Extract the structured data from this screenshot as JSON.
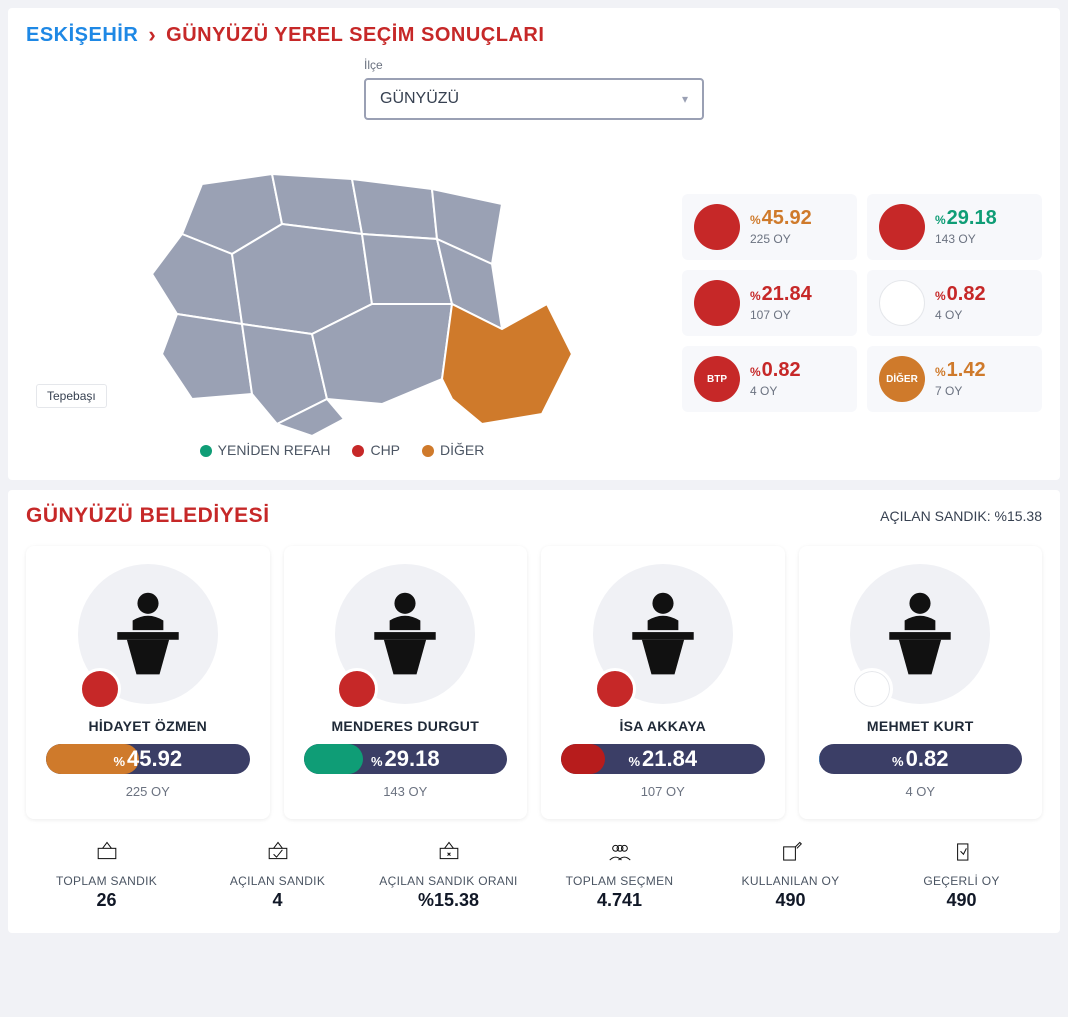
{
  "colors": {
    "province_link": "#1e88e5",
    "title": "#c62828",
    "map_default": "#9aa1b4",
    "map_highlight": "#cf7a2b",
    "bar_track": "#3b3e66"
  },
  "breadcrumb": {
    "province": "ESKİŞEHİR",
    "title": "GÜNYÜZÜ YEREL SEÇİM SONUÇLARI"
  },
  "selector": {
    "label": "İlçe",
    "value": "GÜNYÜZÜ"
  },
  "map": {
    "hover_label": "Tepebaşı"
  },
  "legend": [
    {
      "label": "YENİDEN REFAH",
      "color": "#0f9d76"
    },
    {
      "label": "CHP",
      "color": "#c62828"
    },
    {
      "label": "DİĞER",
      "color": "#cf7a2b"
    }
  ],
  "parties": [
    {
      "pct": "45.92",
      "votes": "225 OY",
      "pct_color": "#cf7a2b",
      "logo_bg": "#c62828",
      "logo_text": ""
    },
    {
      "pct": "29.18",
      "votes": "143 OY",
      "pct_color": "#0f9d76",
      "logo_bg": "#c62828",
      "logo_text": ""
    },
    {
      "pct": "21.84",
      "votes": "107 OY",
      "pct_color": "#c62828",
      "logo_bg": "#c62828",
      "logo_text": ""
    },
    {
      "pct": "0.82",
      "votes": "4 OY",
      "pct_color": "#c62828",
      "logo_bg": "#ffffff",
      "logo_text": "",
      "logo_fg": "#3b6ea5"
    },
    {
      "pct": "0.82",
      "votes": "4 OY",
      "pct_color": "#c62828",
      "logo_bg": "#c62828",
      "logo_text": "BTP"
    },
    {
      "pct": "1.42",
      "votes": "7 OY",
      "pct_color": "#cf7a2b",
      "logo_bg": "#cf7a2b",
      "logo_text": "DİĞER"
    }
  ],
  "municipality": {
    "title": "GÜNYÜZÜ BELEDİYESİ",
    "open_label": "AÇILAN SANDIK: %15.38"
  },
  "candidates": [
    {
      "name": "HİDAYET ÖZMEN",
      "pct": "45.92",
      "votes": "225 OY",
      "fill_color": "#cf7a2b",
      "fill_width": 45.92,
      "badge_bg": "#c62828"
    },
    {
      "name": "MENDERES DURGUT",
      "pct": "29.18",
      "votes": "143 OY",
      "fill_color": "#0f9d76",
      "fill_width": 29.18,
      "badge_bg": "#c62828"
    },
    {
      "name": "İSA AKKAYA",
      "pct": "21.84",
      "votes": "107 OY",
      "fill_color": "#b71c1c",
      "fill_width": 21.84,
      "badge_bg": "#c62828"
    },
    {
      "name": "MEHMET KURT",
      "pct": "0.82",
      "votes": "4 OY",
      "fill_color": "#3b6ea5",
      "fill_width": 0.82,
      "badge_bg": "#ffffff",
      "badge_fg": "#3b6ea5"
    }
  ],
  "stats": [
    {
      "label": "TOPLAM SANDIK",
      "value": "26"
    },
    {
      "label": "AÇILAN SANDIK",
      "value": "4"
    },
    {
      "label": "AÇILAN SANDIK ORANI",
      "value": "%15.38"
    },
    {
      "label": "TOPLAM SEÇMEN",
      "value": "4.741"
    },
    {
      "label": "KULLANILAN OY",
      "value": "490"
    },
    {
      "label": "GEÇERLİ OY",
      "value": "490"
    }
  ]
}
